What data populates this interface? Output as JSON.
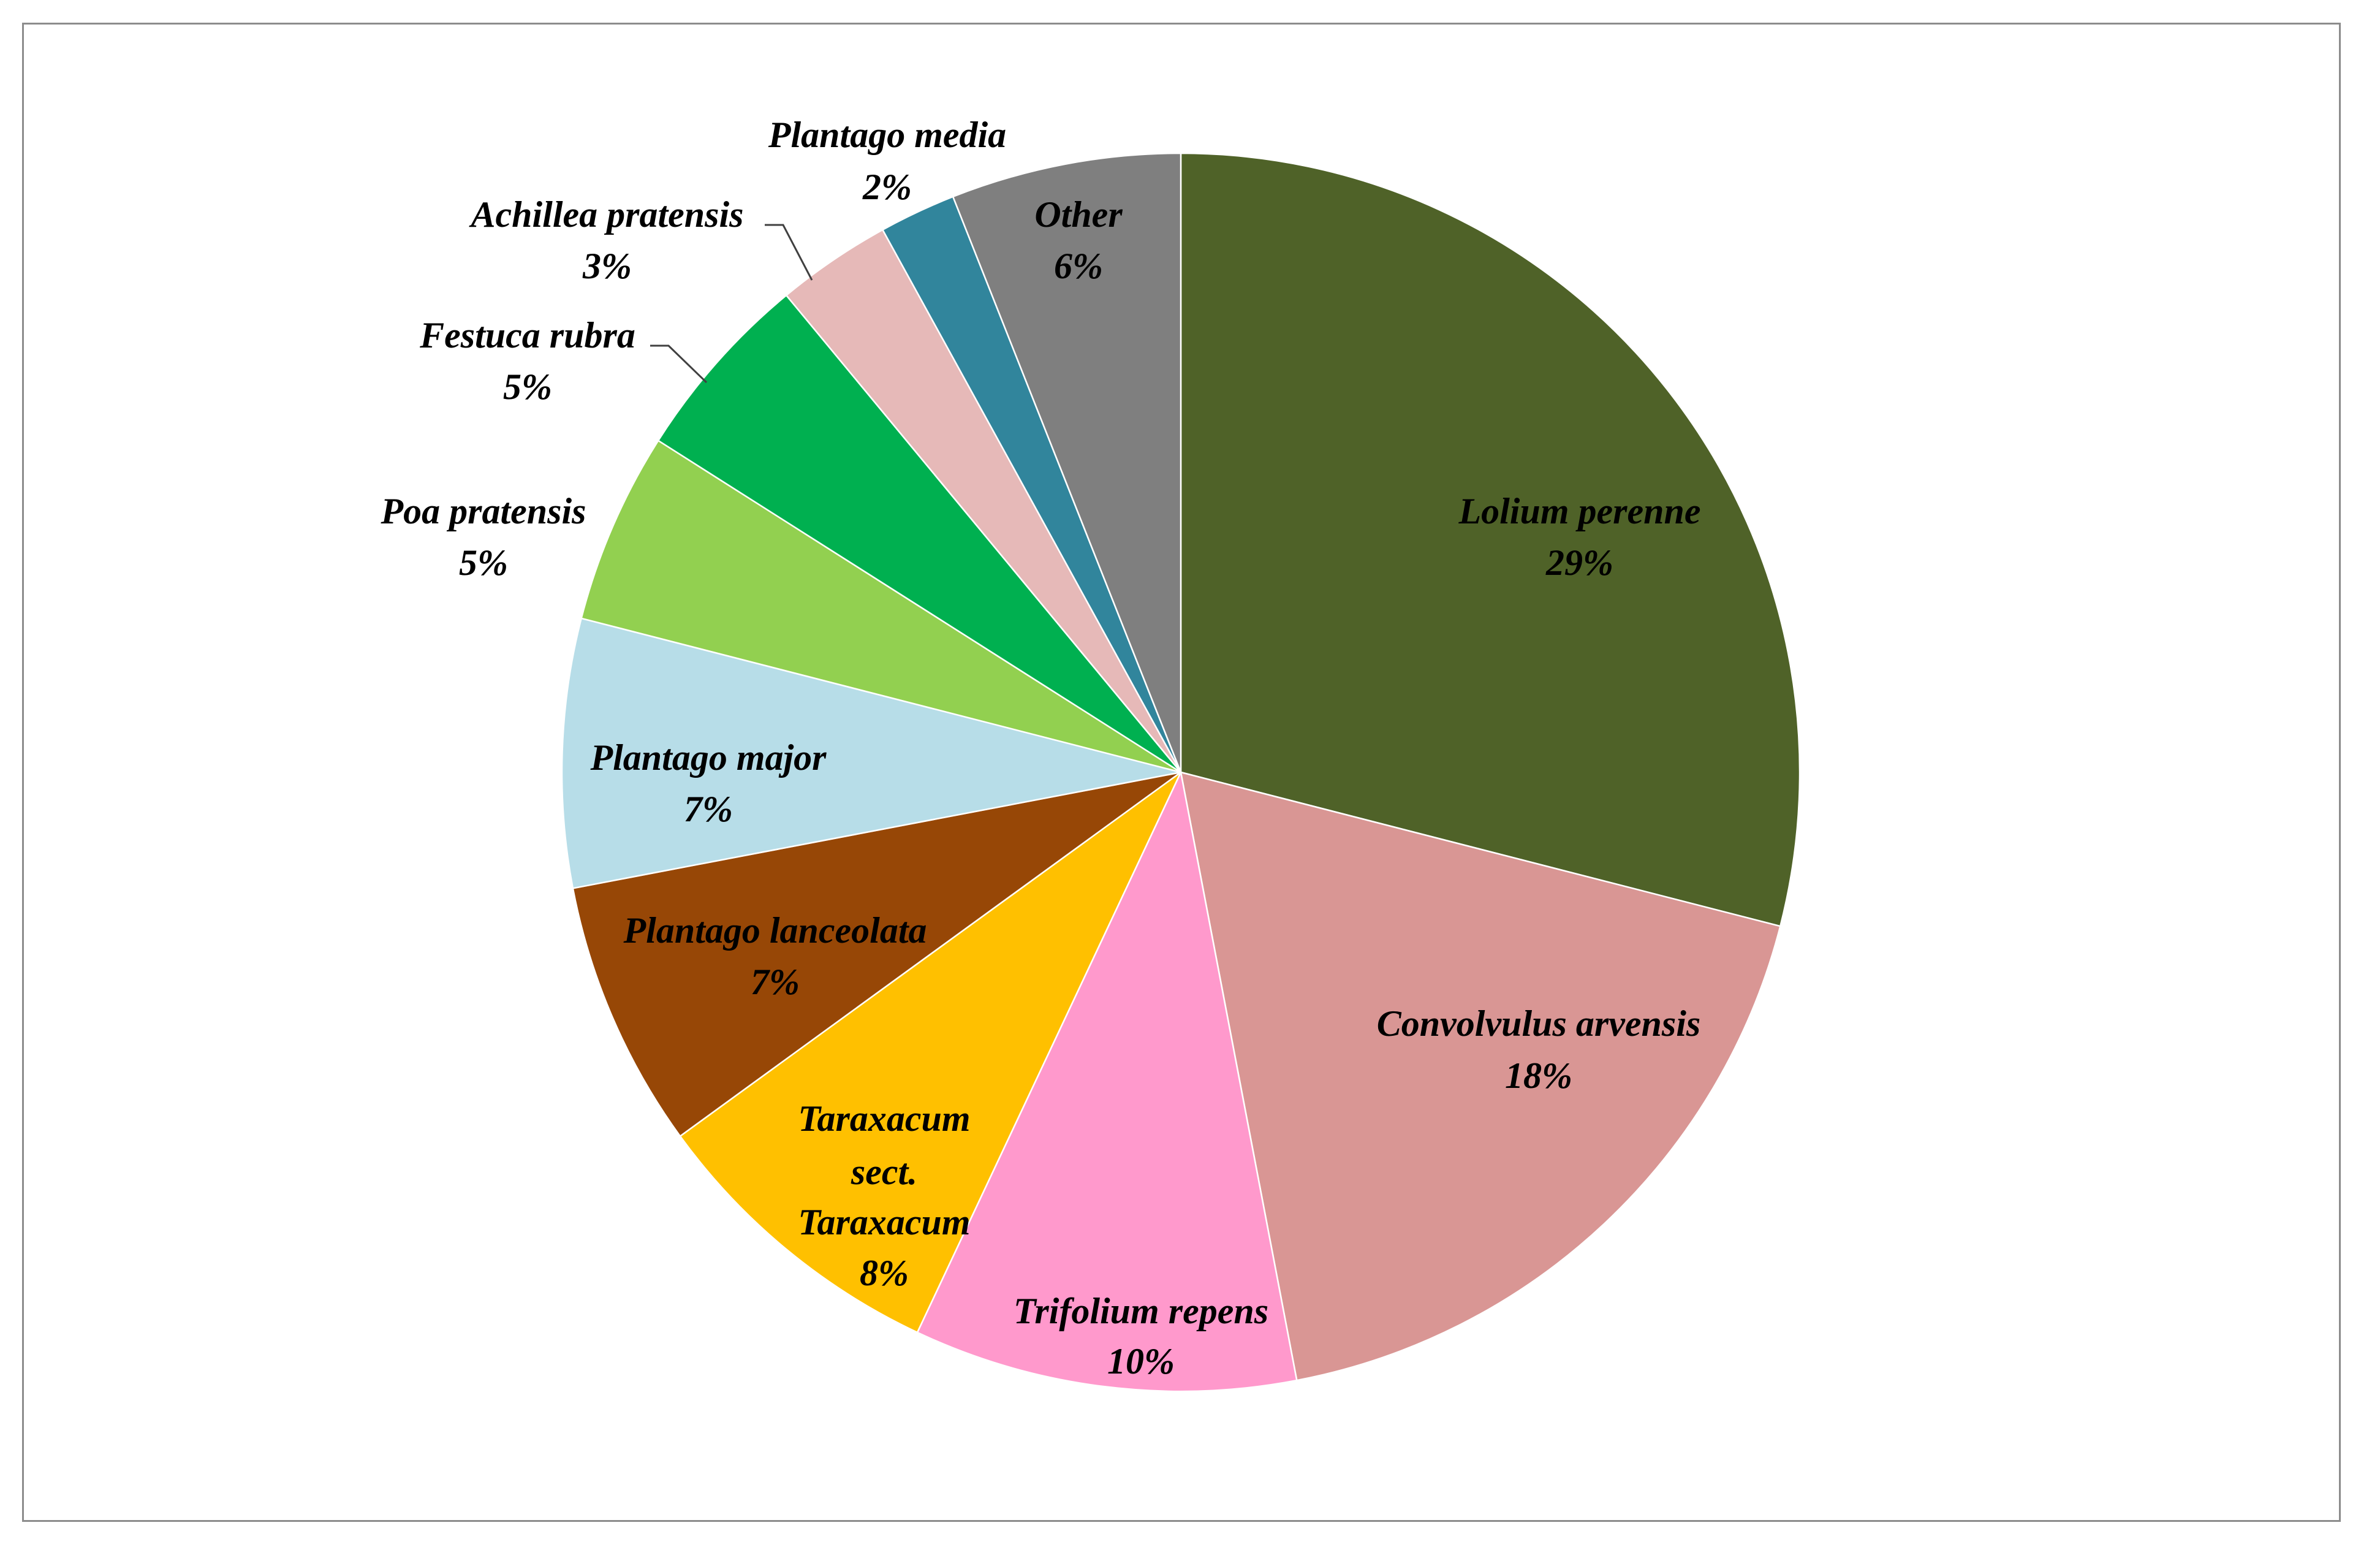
{
  "chart_data": {
    "type": "pie",
    "title": "",
    "start_angle_deg": 0,
    "direction": "clockwise",
    "categories": [
      "Lolium perenne",
      "Convolvulus arvensis",
      "Trifolium repens",
      "Taraxacum sect. Taraxacum",
      "Plantago lanceolata",
      "Plantago major",
      "Poa pratensis",
      "Festuca rubra",
      "Achillea pratensis",
      "Plantago media",
      "Other"
    ],
    "values": [
      29,
      18,
      10,
      8,
      7,
      7,
      5,
      5,
      3,
      2,
      6
    ],
    "unit": "%",
    "colors": [
      "#4f6228",
      "#d99694",
      "#ff99cc",
      "#ffc000",
      "#974706",
      "#b7dde8",
      "#92d050",
      "#00b050",
      "#e6b9b8",
      "#31859c",
      "#7f7f7f"
    ],
    "legend": "none (data labels with category name and percentage)"
  },
  "slices": [
    {
      "name": "Lolium perenne",
      "pct_label": "29%",
      "value": 29,
      "color": "#4f6228"
    },
    {
      "name": "Convolvulus arvensis",
      "pct_label": "18%",
      "value": 18,
      "color": "#d99694"
    },
    {
      "name": "Trifolium repens",
      "pct_label": "10%",
      "value": 10,
      "color": "#ff99cc"
    },
    {
      "name": "Taraxacum sect. Taraxacum",
      "name_lines": [
        "Taraxacum",
        "sect.",
        "Taraxacum"
      ],
      "pct_label": "8%",
      "value": 8,
      "color": "#ffc000"
    },
    {
      "name": "Plantago lanceolata",
      "pct_label": "7%",
      "value": 7,
      "color": "#974706"
    },
    {
      "name": "Plantago major",
      "pct_label": "7%",
      "value": 7,
      "color": "#b7dde8"
    },
    {
      "name": "Poa pratensis",
      "pct_label": "5%",
      "value": 5,
      "color": "#92d050"
    },
    {
      "name": "Festuca rubra",
      "pct_label": "5%",
      "value": 5,
      "color": "#00b050"
    },
    {
      "name": "Achillea pratensis",
      "pct_label": "3%",
      "value": 3,
      "color": "#e6b9b8"
    },
    {
      "name": "Plantago media",
      "pct_label": "2%",
      "value": 2,
      "color": "#31859c"
    },
    {
      "name": "Other",
      "pct_label": "6%",
      "value": 6,
      "color": "#7f7f7f"
    }
  ]
}
